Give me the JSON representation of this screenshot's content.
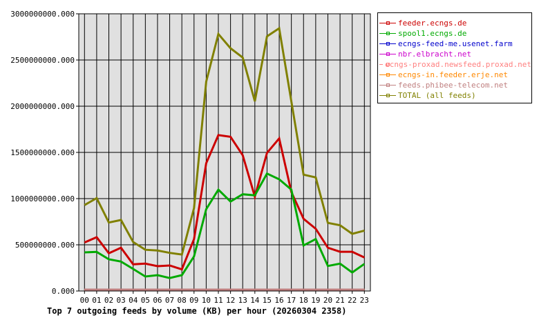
{
  "title": "Top 7 outgoing feeds by volume (KB) per hour (20260304 2358)",
  "chart_data": {
    "type": "line",
    "title": "Top 7 outgoing feeds by volume (KB) per hour (20260304 2358)",
    "xlabel": "",
    "ylabel": "",
    "ylim": [
      0,
      3000000000
    ],
    "grid": true,
    "legend_position": "right",
    "x": [
      "00",
      "01",
      "02",
      "03",
      "04",
      "05",
      "06",
      "07",
      "08",
      "09",
      "10",
      "11",
      "12",
      "13",
      "14",
      "15",
      "16",
      "17",
      "18",
      "19",
      "20",
      "21",
      "22",
      "23"
    ],
    "yticks": [
      "0.000",
      "500000000.000",
      "1000000000.000",
      "1500000000.000",
      "2000000000.000",
      "2500000000.000",
      "3000000000.000"
    ],
    "series": [
      {
        "name": "feeder.ecngs.de",
        "color": "#cc0000",
        "values": [
          525000000,
          582000000,
          408000000,
          468000000,
          289000000,
          296000000,
          269000000,
          276000000,
          234000000,
          562000000,
          1383000000,
          1687000000,
          1669000000,
          1470000000,
          1022000000,
          1495000000,
          1651000000,
          1072000000,
          781000000,
          674000000,
          468000000,
          425000000,
          425000000,
          363000000
        ]
      },
      {
        "name": "spool1.ecngs.de",
        "color": "#00aa00",
        "values": [
          418000000,
          423000000,
          343000000,
          319000000,
          239000000,
          157000000,
          172000000,
          140000000,
          172000000,
          375000000,
          886000000,
          1097000000,
          968000000,
          1047000000,
          1035000000,
          1271000000,
          1209000000,
          1097000000,
          493000000,
          562000000,
          271000000,
          296000000,
          201000000,
          293000000
        ]
      },
      {
        "name": "ecngs-feed-me.usenet.farm",
        "color": "#0000cc",
        "values": [
          0,
          0,
          0,
          0,
          0,
          0,
          0,
          0,
          0,
          0,
          0,
          0,
          0,
          0,
          0,
          0,
          0,
          0,
          0,
          0,
          0,
          0,
          0,
          0
        ]
      },
      {
        "name": "nbr.elbracht.net",
        "color": "#cc00cc",
        "values": [
          0,
          0,
          0,
          0,
          0,
          0,
          0,
          0,
          0,
          0,
          0,
          0,
          0,
          0,
          0,
          0,
          0,
          0,
          0,
          0,
          0,
          0,
          0,
          0
        ]
      },
      {
        "name": "ecngs-proxad.newsfeed.proxad.net",
        "color": "#ff8080",
        "values": [
          0,
          0,
          0,
          0,
          0,
          0,
          0,
          0,
          0,
          0,
          0,
          0,
          0,
          0,
          0,
          0,
          0,
          0,
          0,
          0,
          0,
          0,
          0,
          0
        ]
      },
      {
        "name": "ecngs-in.feeder.erje.net",
        "color": "#ff8800",
        "values": [
          0,
          0,
          0,
          0,
          0,
          0,
          0,
          0,
          0,
          0,
          0,
          0,
          0,
          0,
          0,
          0,
          0,
          0,
          0,
          0,
          0,
          0,
          0,
          0
        ]
      },
      {
        "name": "feeds.phibee-telecom.net",
        "color": "#c08080",
        "values": [
          0,
          0,
          0,
          0,
          0,
          0,
          0,
          0,
          0,
          0,
          0,
          0,
          0,
          0,
          0,
          0,
          0,
          0,
          0,
          0,
          0,
          0,
          0,
          0
        ]
      },
      {
        "name": "TOTAL (all feeds)",
        "color": "#808000",
        "values": [
          930000000,
          1005000000,
          741000000,
          769000000,
          530000000,
          446000000,
          438000000,
          413000000,
          395000000,
          898000000,
          2266000000,
          2781000000,
          2627000000,
          2527000000,
          2054000000,
          2756000000,
          2843000000,
          2052000000,
          1259000000,
          1229000000,
          737000000,
          711000000,
          619000000,
          654000000
        ]
      }
    ]
  }
}
